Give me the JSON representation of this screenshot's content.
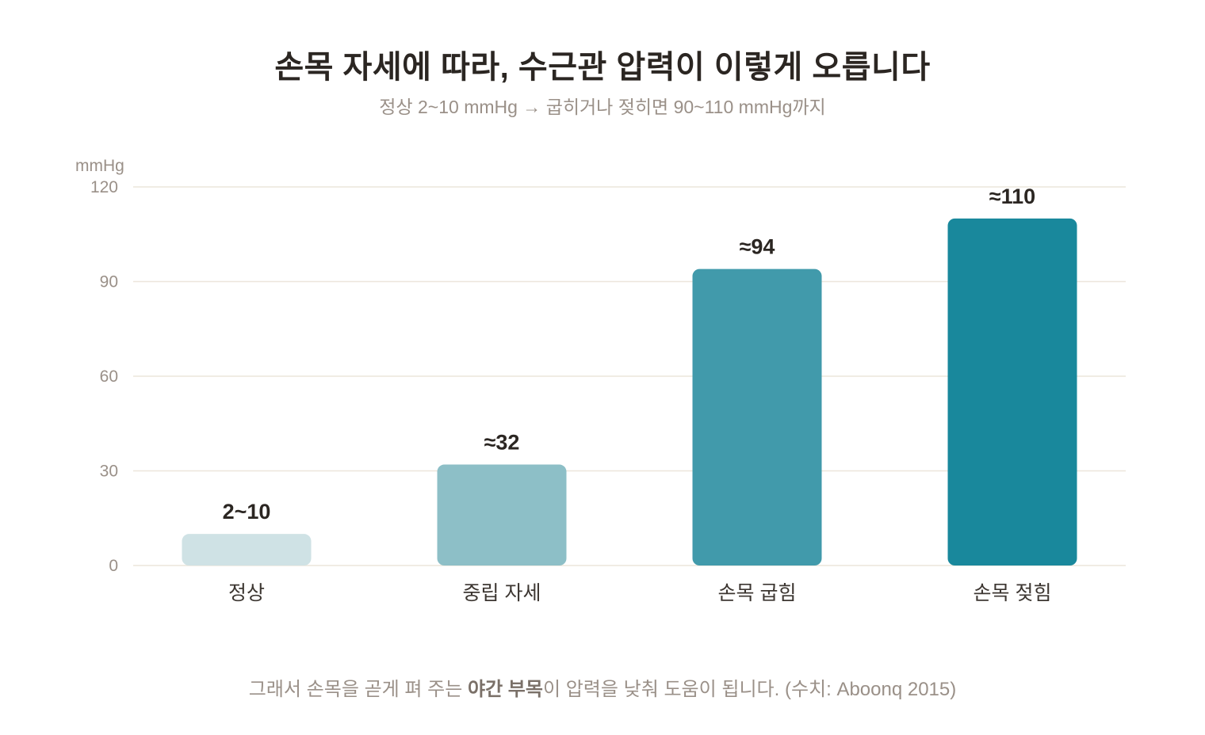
{
  "title": "손목 자세에 따라, 수근관 압력이 이렇게 오릅니다",
  "subtitle": "정상 2~10 mmHg → 굽히거나 젖히면 90~110 mmHg까지",
  "footer": {
    "before": "그래서 손목을 곧게 펴 주는 ",
    "bold": "야간 부목",
    "after": "이 압력을 낮춰 도움이 됩니다. (수치: Aboonq 2015)"
  },
  "colors": {
    "grid": "#ece6dc",
    "axis_text": "#9a9088",
    "category_text": "#3c3631",
    "value_text": "#2b2622"
  },
  "chart_data": {
    "type": "bar",
    "categories": [
      "정상",
      "중립 자세",
      "손목 굽힘",
      "손목 젖힘"
    ],
    "values": [
      10,
      32,
      94,
      110
    ],
    "value_labels": [
      "2~10",
      "≈32",
      "≈94",
      "≈110"
    ],
    "bar_colors": [
      "#cfe2e5",
      "#8dbfc7",
      "#419aab",
      "#19889c"
    ],
    "ylabel": "mmHg",
    "ylim": [
      0,
      120
    ],
    "yticks": [
      0,
      30,
      60,
      90,
      120
    ],
    "grid": true
  }
}
